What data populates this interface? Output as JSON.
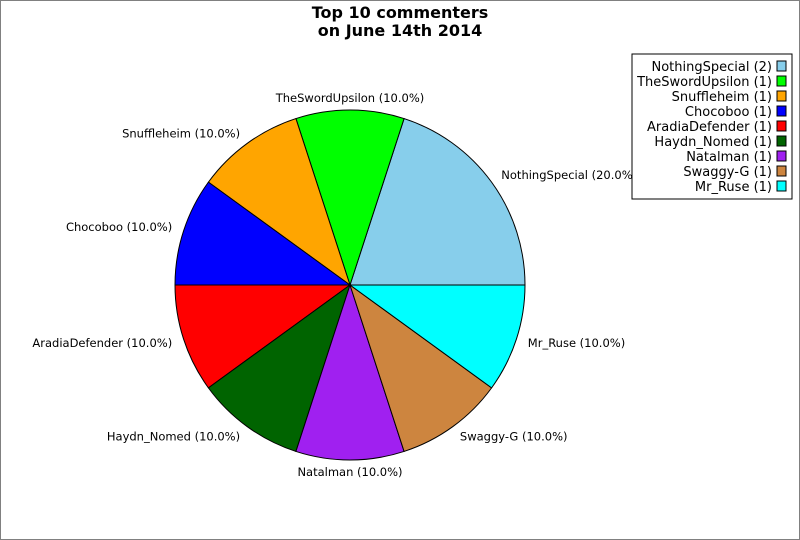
{
  "chart_data": {
    "type": "pie",
    "title": [
      "Top 10 commenters",
      "on June 14th 2014"
    ],
    "slices": [
      {
        "name": "NothingSpecial",
        "value": 2,
        "percent_label": "NothingSpecial (20.0%)",
        "legend_label": "NothingSpecial (2)",
        "color": "#87ceeb"
      },
      {
        "name": "TheSwordUpsilon",
        "value": 1,
        "percent_label": "TheSwordUpsilon (10.0%)",
        "legend_label": "TheSwordUpsilon (1)",
        "color": "#00ff00"
      },
      {
        "name": "Snuffleheim",
        "value": 1,
        "percent_label": "Snuffleheim (10.0%)",
        "legend_label": "Snuffleheim (1)",
        "color": "#ffa500"
      },
      {
        "name": "Chocoboo",
        "value": 1,
        "percent_label": "Chocoboo (10.0%)",
        "legend_label": "Chocoboo (1)",
        "color": "#0000ff"
      },
      {
        "name": "AradiaDefender",
        "value": 1,
        "percent_label": "AradiaDefender (10.0%)",
        "legend_label": "AradiaDefender (1)",
        "color": "#ff0000"
      },
      {
        "name": "Haydn_Nomed",
        "value": 1,
        "percent_label": "Haydn_Nomed (10.0%)",
        "legend_label": "Haydn_Nomed (1)",
        "color": "#006400"
      },
      {
        "name": "Natalman",
        "value": 1,
        "percent_label": "Natalman (10.0%)",
        "legend_label": "Natalman (1)",
        "color": "#a020f0"
      },
      {
        "name": "Swaggy-G",
        "value": 1,
        "percent_label": "Swaggy-G (10.0%)",
        "legend_label": "Swaggy-G (1)",
        "color": "#cd853f"
      },
      {
        "name": "Mr_Ruse",
        "value": 1,
        "percent_label": "Mr_Ruse (10.0%)",
        "legend_label": "Mr_Ruse (1)",
        "color": "#00ffff"
      }
    ],
    "start": "3 o'clock",
    "direction": "counterclockwise",
    "legend_position": "top-right"
  }
}
